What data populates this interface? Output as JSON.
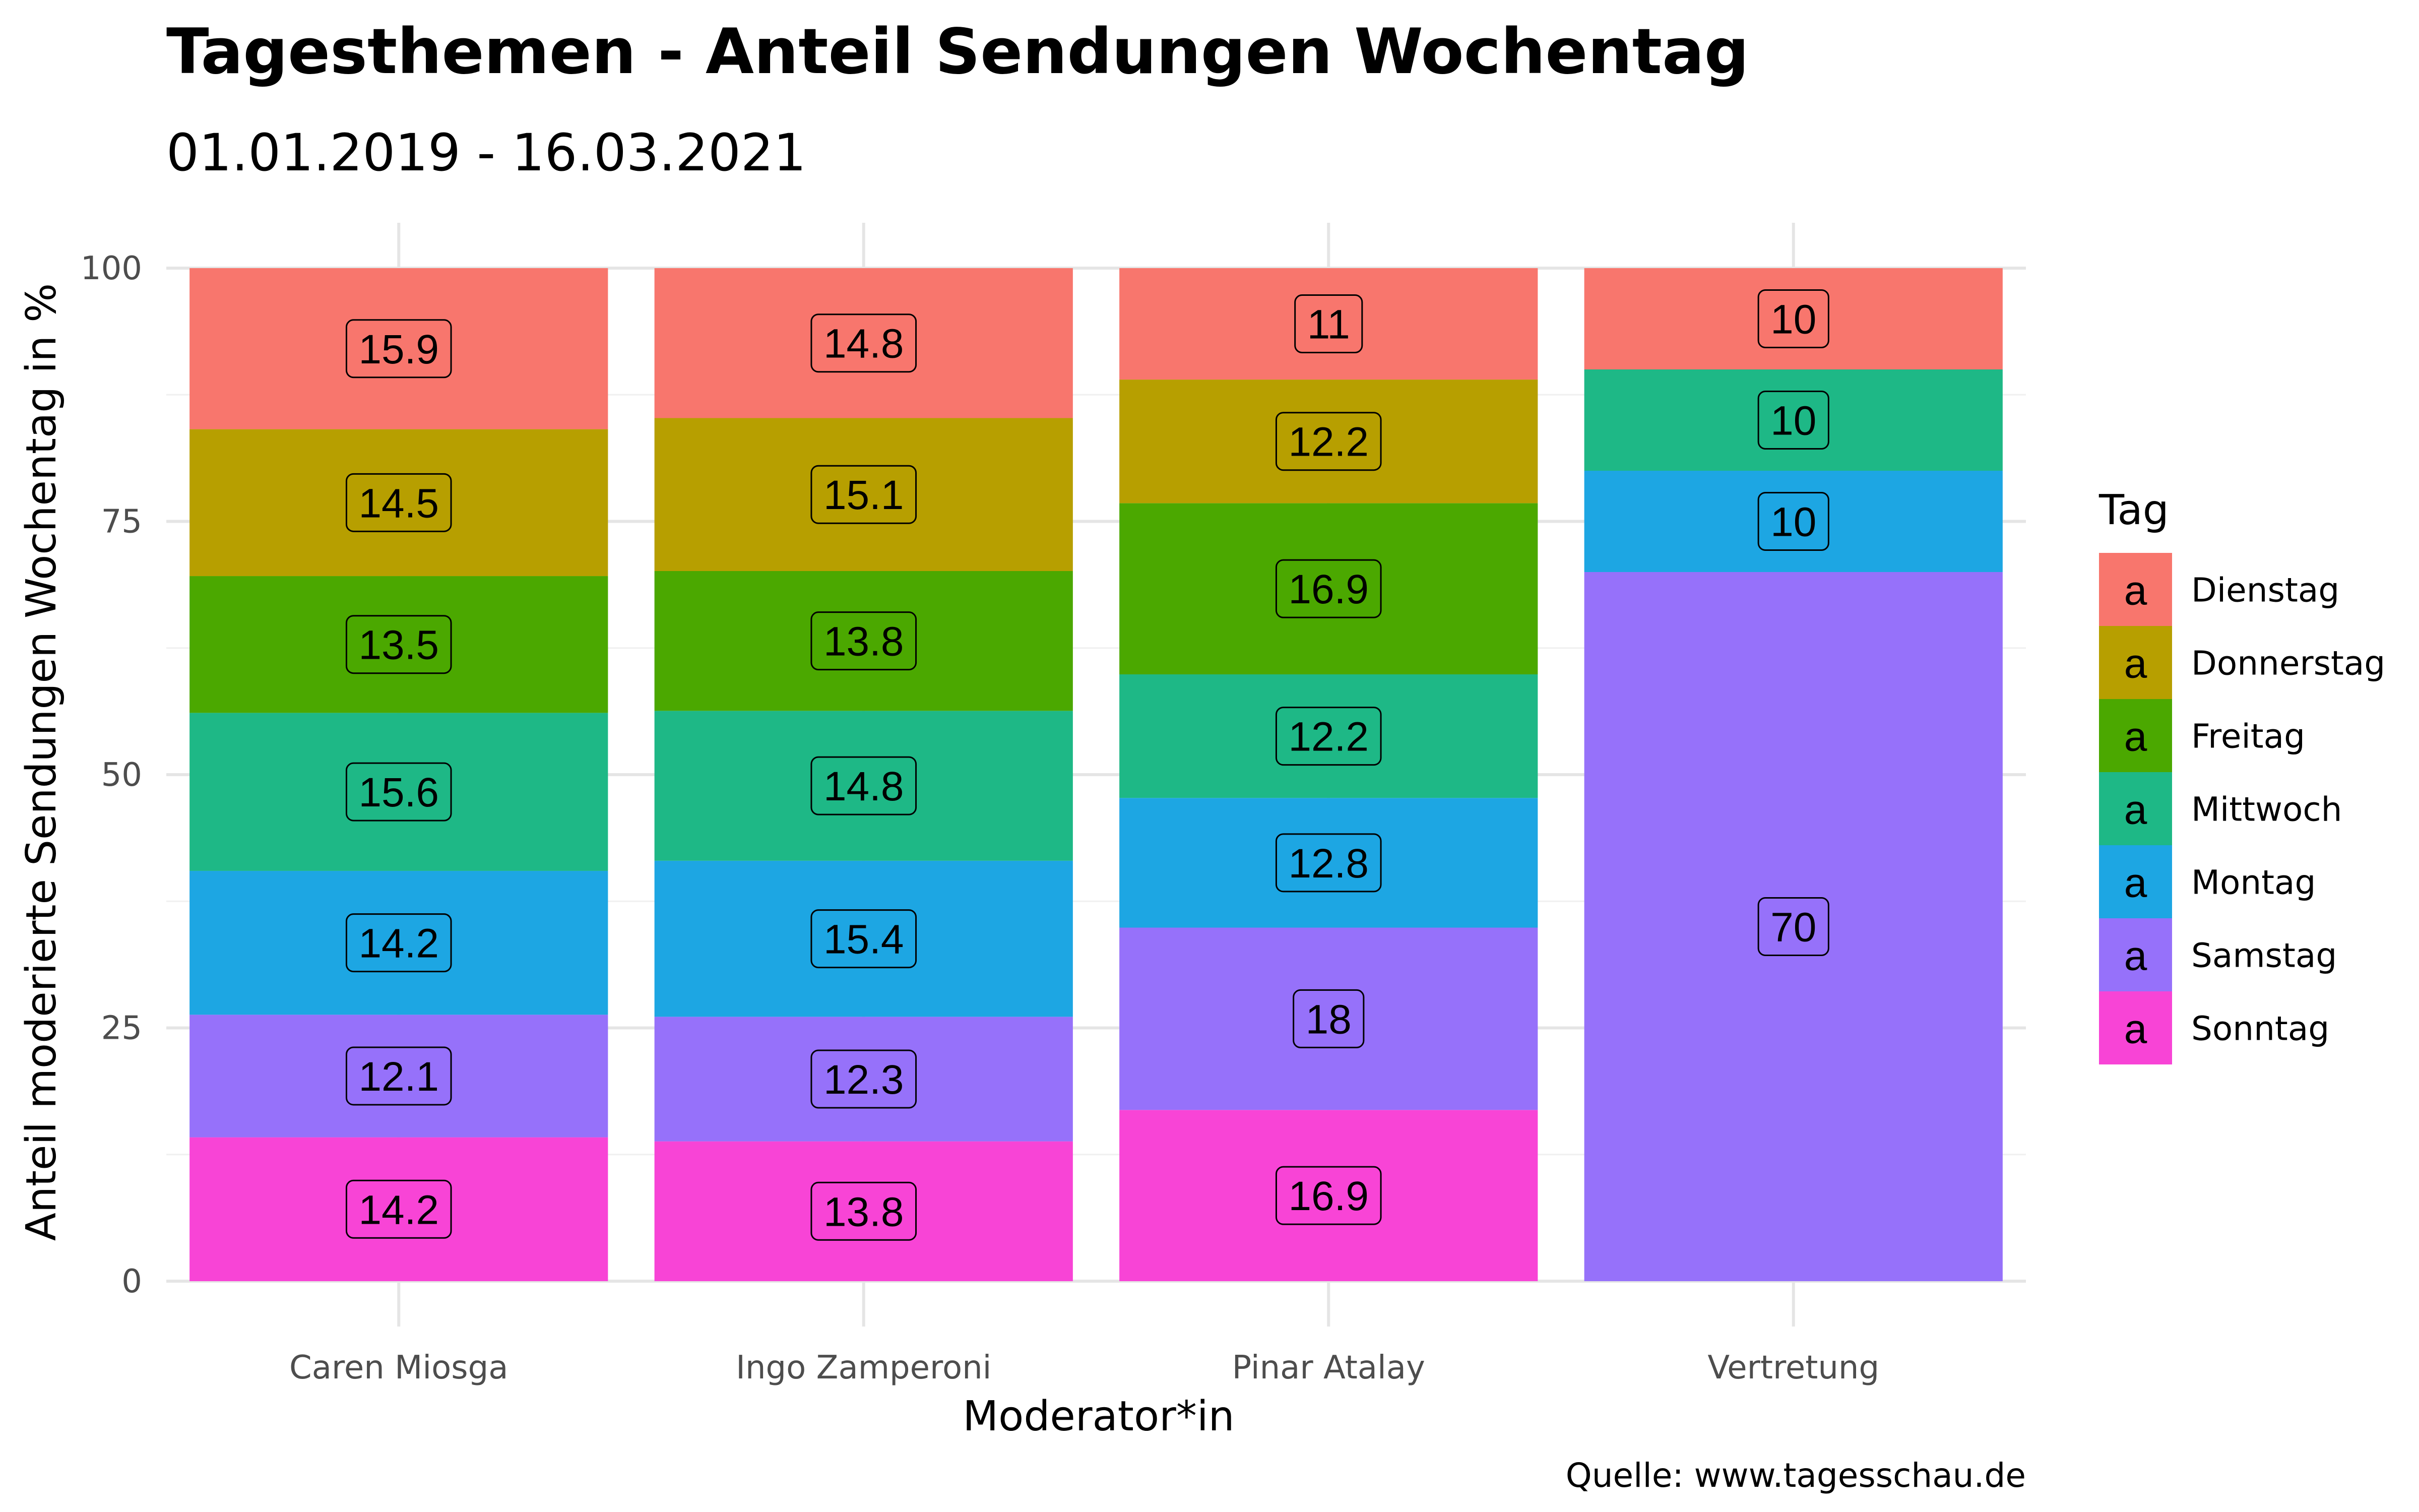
{
  "chart_data": {
    "type": "bar",
    "stacked": true,
    "title": "Tagesthemen - Anteil Sendungen Wochentag",
    "subtitle": "01.01.2019 - 16.03.2021",
    "xlabel": "Moderator*in",
    "ylabel": "Anteil moderierte Sendungen Wochentag in %",
    "caption": "Quelle: www.tagesschau.de",
    "ylim": [
      0,
      100
    ],
    "yticks": [
      0,
      25,
      50,
      75,
      100
    ],
    "grid": true,
    "legend_title": "Tag",
    "legend_key_glyph": "a",
    "legend_position": "right",
    "categories": [
      "Caren Miosga",
      "Ingo Zamperoni",
      "Pinar Atalay",
      "Vertretung"
    ],
    "series": [
      {
        "name": "Dienstag",
        "color": "#F8766D",
        "values": [
          15.9,
          14.8,
          11,
          10
        ]
      },
      {
        "name": "Donnerstag",
        "color": "#B79F00",
        "values": [
          14.5,
          15.1,
          12.2,
          0
        ]
      },
      {
        "name": "Freitag",
        "color": "#4BA800",
        "values": [
          13.5,
          13.8,
          16.9,
          0
        ]
      },
      {
        "name": "Mittwoch",
        "color": "#1EB886",
        "values": [
          15.6,
          14.8,
          12.2,
          10
        ]
      },
      {
        "name": "Montag",
        "color": "#1DA6E3",
        "values": [
          14.2,
          15.4,
          12.8,
          10
        ]
      },
      {
        "name": "Samstag",
        "color": "#9671FA",
        "values": [
          12.1,
          12.3,
          18,
          70
        ]
      },
      {
        "name": "Sonntag",
        "color": "#F844D6",
        "values": [
          14.2,
          13.8,
          16.9,
          0
        ]
      }
    ],
    "stack_order_bottom_to_top": [
      "Sonntag",
      "Samstag",
      "Montag",
      "Mittwoch",
      "Freitag",
      "Donnerstag",
      "Dienstag"
    ]
  }
}
